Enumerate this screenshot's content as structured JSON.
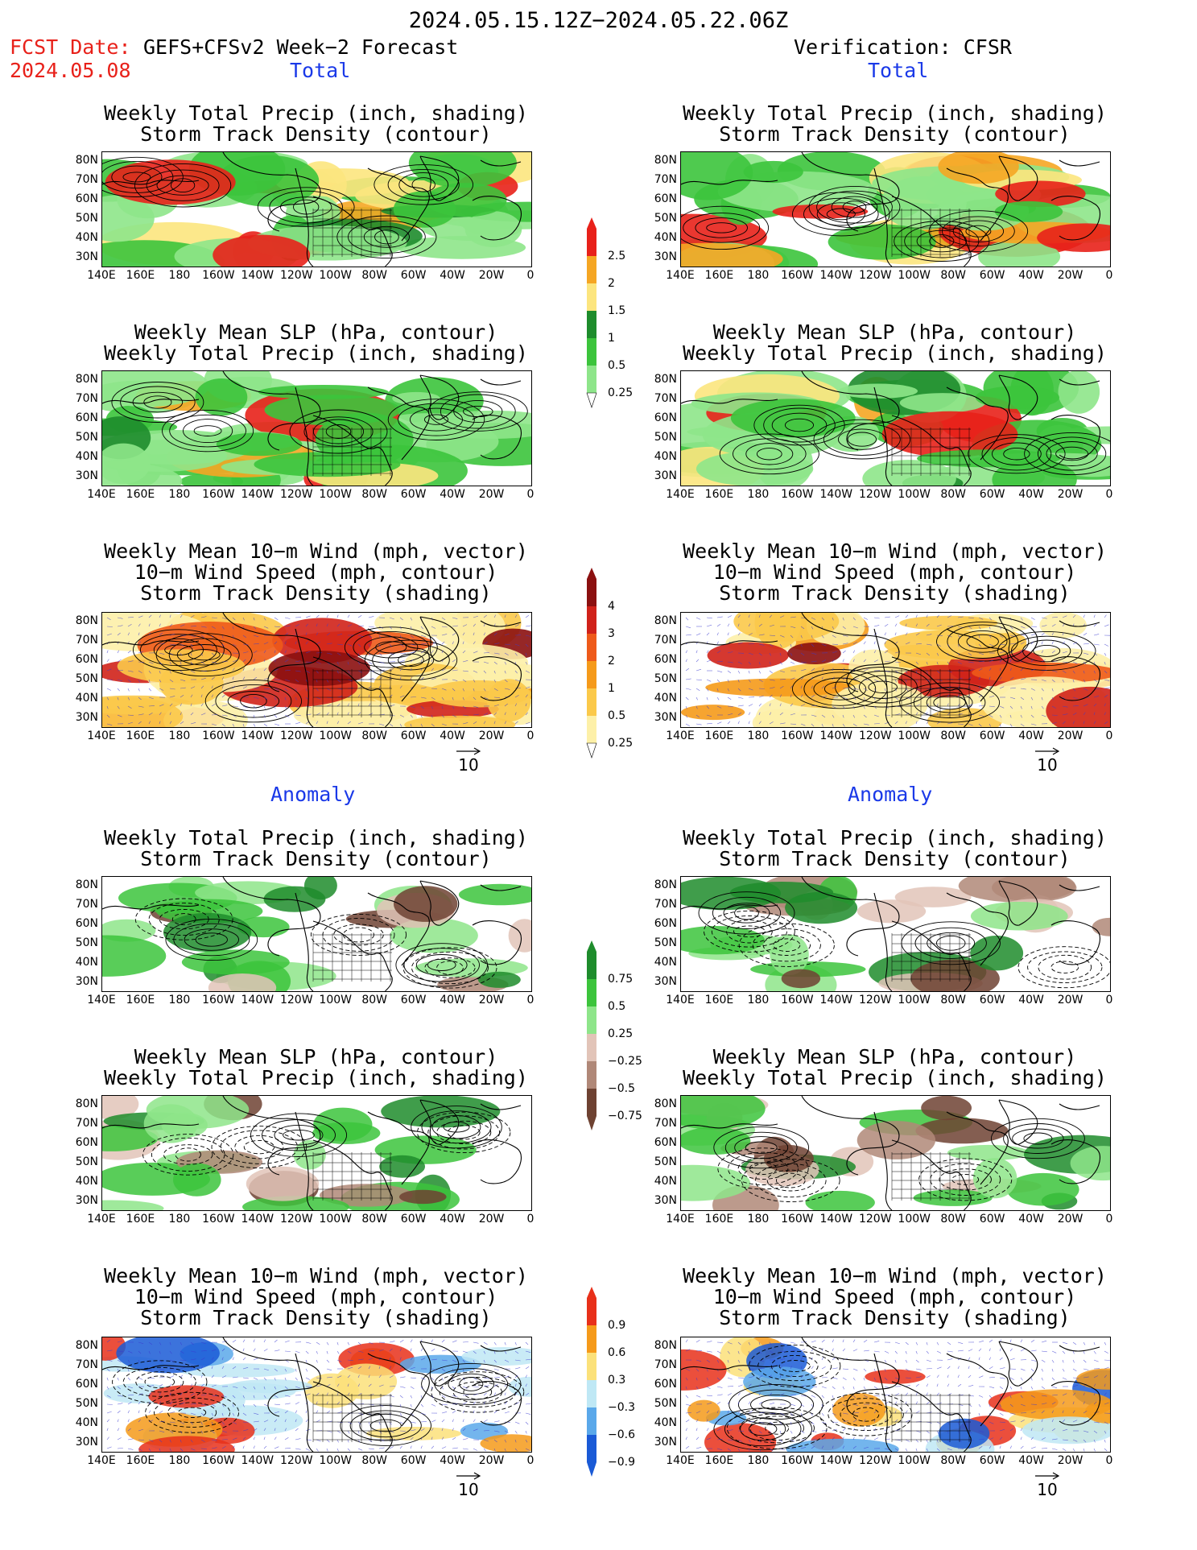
{
  "title": "2024.05.15.12Z−2024.05.22.06Z",
  "header": {
    "fcst_date_label": "FCST Date:",
    "forecast_label": "GEFS+CFSv2 Week−2 Forecast",
    "fcst_date": "2024.05.08",
    "verification": "Verification: CFSR"
  },
  "sections": {
    "total": "Total",
    "anomaly": "Anomaly"
  },
  "panel_titles": {
    "precip_storm": [
      "Weekly Total Precip (inch, shading)",
      "Storm Track Density (contour)"
    ],
    "slp_precip": [
      "Weekly Mean SLP (hPa, contour)",
      "Weekly Total Precip (inch, shading)"
    ],
    "wind_storm": [
      "Weekly Mean 10−m Wind (mph, vector)",
      "10−m Wind Speed (mph, contour)",
      "Storm Track Density (shading)"
    ]
  },
  "axes": {
    "lat_ticks": [
      "80N",
      "70N",
      "60N",
      "50N",
      "40N",
      "30N"
    ],
    "lon_ticks": [
      "140E",
      "160E",
      "180",
      "160W",
      "140W",
      "120W",
      "100W",
      "80W",
      "60W",
      "40W",
      "20W",
      "0"
    ]
  },
  "vector_reference": "10",
  "colorbars": {
    "total_precip": [
      {
        "label": "2.5",
        "color": "#e8211a"
      },
      {
        "label": "2",
        "color": "#f5a623"
      },
      {
        "label": "1.5",
        "color": "#fce57e"
      },
      {
        "label": "1",
        "color": "#1e8c2c"
      },
      {
        "label": "0.5",
        "color": "#3cc43c"
      },
      {
        "label": "0.25",
        "color": "#8ee58a"
      }
    ],
    "total_storm": [
      {
        "label": "4",
        "color": "#8b1010"
      },
      {
        "label": "3",
        "color": "#d0221a"
      },
      {
        "label": "2",
        "color": "#ee5a1a"
      },
      {
        "label": "1",
        "color": "#f59a1a"
      },
      {
        "label": "0.5",
        "color": "#fbc94a"
      },
      {
        "label": "0.25",
        "color": "#fdf0a8"
      }
    ],
    "anom_precip": [
      {
        "label": "0.75",
        "color": "#1e8c2c"
      },
      {
        "label": "0.5",
        "color": "#3cc43c"
      },
      {
        "label": "0.25",
        "color": "#8ee58a"
      },
      {
        "label": "−0.25",
        "color": "#e2c4b8"
      },
      {
        "label": "−0.5",
        "color": "#b08878"
      },
      {
        "label": "−0.75",
        "color": "#6e4232"
      }
    ],
    "anom_storm": [
      {
        "label": "0.9",
        "color": "#e8301a"
      },
      {
        "label": "0.6",
        "color": "#f59a1a"
      },
      {
        "label": "0.3",
        "color": "#fbe17a"
      },
      {
        "label": "−0.3",
        "color": "#bfe8f5"
      },
      {
        "label": "−0.6",
        "color": "#5aa8ea"
      },
      {
        "label": "−0.9",
        "color": "#1a5ad6"
      }
    ]
  },
  "map_fields": {
    "precip_total": {
      "colors": [
        "#8ee58a",
        "#3cc43c",
        "#1e8c2c",
        "#fce57e",
        "#f5a623",
        "#e8211a"
      ]
    },
    "storm_total": {
      "colors": [
        "#fdf0a8",
        "#fbc94a",
        "#f59a1a",
        "#ee5a1a",
        "#d0221a",
        "#8b1010"
      ]
    },
    "precip_anom": {
      "colors": [
        "#8ee58a",
        "#3cc43c",
        "#1e8c2c",
        "#e2c4b8",
        "#b08878",
        "#6e4232"
      ]
    },
    "storm_anom": {
      "colors": [
        "#e8301a",
        "#f59a1a",
        "#fbe17a",
        "#bfe8f5",
        "#5aa8ea",
        "#1a5ad6"
      ]
    },
    "contour_color": "#000000",
    "vector_color": "#3a3ad0"
  }
}
